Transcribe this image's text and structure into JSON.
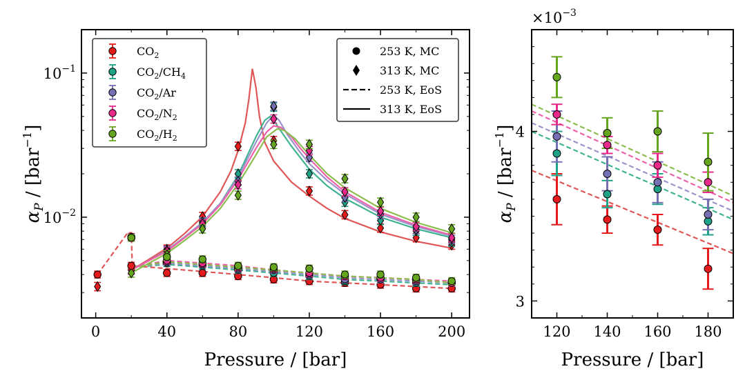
{
  "colors": {
    "CO2": "#e41a1c",
    "CO2/CH4": "#1fa187",
    "CO2/Ar": "#7570b3",
    "CO2/N2": "#e7298a",
    "CO2/H2": "#66a61e",
    "CO2_line": "#e05555",
    "CO2/CH4_line": "#3fb292",
    "CO2/Ar_line": "#9a93cc",
    "CO2/N2_line": "#ef60a8",
    "CO2/H2_line": "#8bbd4e"
  },
  "chart_data": [
    {
      "type": "scatter",
      "scale_y": "log",
      "xlabel_main": "Pressure / [bar]",
      "ylabel_prefix": "α",
      "ylabel_sub": "P",
      "ylabel_suffix": " / [bar",
      "ylabel_sup": "−1",
      "ylabel_close": "]",
      "xlim": [
        -8,
        210
      ],
      "ylim": [
        0.002,
        0.2
      ],
      "xticks": [
        0,
        40,
        80,
        120,
        160,
        200
      ],
      "xtick_labels": [
        "0",
        "40",
        "80",
        "120",
        "160",
        "200"
      ],
      "ytick_labels": [
        {
          "base": "10",
          "exp": "−1",
          "value": 0.1
        },
        {
          "base": "10",
          "exp": "−2",
          "value": 0.01
        }
      ],
      "legend_left": [
        {
          "base": "CO",
          "parts": [
            [
              "2",
              "sub"
            ]
          ],
          "key": "CO2"
        },
        {
          "base": "CO",
          "parts": [
            [
              "2",
              "sub"
            ],
            [
              "/CH",
              ""
            ],
            [
              "4",
              "sub"
            ]
          ],
          "key": "CO2/CH4"
        },
        {
          "base": "CO",
          "parts": [
            [
              "2",
              "sub"
            ],
            [
              "/Ar",
              ""
            ]
          ],
          "key": "CO2/Ar"
        },
        {
          "base": "CO",
          "parts": [
            [
              "2",
              "sub"
            ],
            [
              "/N",
              ""
            ],
            [
              "2",
              "sub"
            ]
          ],
          "key": "CO2/N2"
        },
        {
          "base": "CO",
          "parts": [
            [
              "2",
              "sub"
            ],
            [
              "/H",
              ""
            ],
            [
              "2",
              "sub"
            ]
          ],
          "key": "CO2/H2"
        }
      ],
      "legend_right": [
        {
          "label": "253 K, MC",
          "marker": "circle"
        },
        {
          "label": "313 K, MC",
          "marker": "diamond"
        },
        {
          "label": "253 K, EoS",
          "marker": "dashed"
        },
        {
          "label": "313 K, EoS",
          "marker": "solid"
        }
      ],
      "series_253_mc": [
        {
          "name": "CO2",
          "x": [
            1,
            20,
            40,
            60,
            80,
            100,
            120,
            140,
            160,
            180,
            200
          ],
          "y": [
            0.004,
            0.0046,
            0.0041,
            0.0041,
            0.0039,
            0.0037,
            0.0036,
            0.0035,
            0.0034,
            0.0032,
            0.0032
          ]
        },
        {
          "name": "CO2/CH4",
          "x": [
            20,
            40,
            60,
            80,
            100,
            120,
            140,
            160,
            180,
            200
          ],
          "y": [
            0.0072,
            0.0048,
            0.0046,
            0.0043,
            0.0041,
            0.0039,
            0.0036,
            0.0037,
            0.0035,
            0.0035
          ]
        },
        {
          "name": "CO2/Ar",
          "x": [
            20,
            40,
            60,
            80,
            100,
            120,
            140,
            160,
            180,
            200
          ],
          "y": [
            0.0072,
            0.0049,
            0.0047,
            0.0044,
            0.0043,
            0.004,
            0.0037,
            0.0037,
            0.0036,
            0.0035
          ]
        },
        {
          "name": "CO2/N2",
          "x": [
            20,
            40,
            60,
            80,
            100,
            120,
            140,
            160,
            180,
            200
          ],
          "y": [
            0.0073,
            0.005,
            0.0048,
            0.0045,
            0.0044,
            0.0041,
            0.0039,
            0.0038,
            0.0037,
            0.0035
          ]
        },
        {
          "name": "CO2/H2",
          "x": [
            20,
            40,
            60,
            80,
            100,
            120,
            140,
            160,
            180,
            200
          ],
          "y": [
            0.0072,
            0.0053,
            0.0051,
            0.0046,
            0.0045,
            0.0044,
            0.004,
            0.004,
            0.0038,
            0.0036
          ]
        }
      ],
      "series_313_mc": [
        {
          "name": "CO2",
          "x": [
            1,
            20,
            40,
            60,
            80,
            100,
            120,
            140,
            160,
            180,
            200
          ],
          "y": [
            0.0033,
            0.0043,
            0.006,
            0.0101,
            0.031,
            0.034,
            0.0152,
            0.0104,
            0.0084,
            0.0072,
            0.0064
          ]
        },
        {
          "name": "CO2/CH4",
          "x": [
            20,
            40,
            60,
            80,
            100,
            120,
            140,
            160,
            180,
            200
          ],
          "y": [
            0.0043,
            0.0058,
            0.0092,
            0.02,
            0.058,
            0.02,
            0.0127,
            0.0095,
            0.008,
            0.0067
          ]
        },
        {
          "name": "CO2/Ar",
          "x": [
            20,
            40,
            60,
            80,
            100,
            120,
            140,
            160,
            180,
            200
          ],
          "y": [
            0.0043,
            0.0059,
            0.0093,
            0.0178,
            0.059,
            0.026,
            0.0137,
            0.0105,
            0.0082,
            0.007
          ]
        },
        {
          "name": "CO2/N2",
          "x": [
            20,
            40,
            60,
            80,
            100,
            120,
            140,
            160,
            180,
            200
          ],
          "y": [
            0.0043,
            0.0058,
            0.009,
            0.0168,
            0.048,
            0.029,
            0.015,
            0.011,
            0.0086,
            0.0072
          ]
        },
        {
          "name": "CO2/H2",
          "x": [
            20,
            40,
            60,
            80,
            100,
            120,
            140,
            160,
            180,
            200
          ],
          "y": [
            0.0041,
            0.0055,
            0.0083,
            0.0142,
            0.032,
            0.032,
            0.0185,
            0.0127,
            0.01,
            0.0083
          ]
        }
      ],
      "eos_313": [
        {
          "name": "CO2",
          "x": [
            20,
            30,
            40,
            50,
            60,
            70,
            76,
            80,
            84,
            86,
            88,
            90,
            92,
            95,
            100,
            110,
            120,
            130,
            140,
            160,
            180,
            200
          ],
          "y": [
            0.0043,
            0.0051,
            0.0061,
            0.0077,
            0.0101,
            0.015,
            0.021,
            0.029,
            0.045,
            0.065,
            0.107,
            0.08,
            0.05,
            0.033,
            0.0245,
            0.0175,
            0.014,
            0.0115,
            0.0098,
            0.0079,
            0.0068,
            0.0061
          ]
        },
        {
          "name": "CO2/CH4",
          "x": [
            20,
            30,
            40,
            50,
            60,
            70,
            80,
            90,
            95,
            98,
            100,
            105,
            110,
            120,
            130,
            140,
            160,
            180,
            200
          ],
          "y": [
            0.0043,
            0.005,
            0.0059,
            0.0073,
            0.0092,
            0.0125,
            0.0195,
            0.036,
            0.047,
            0.05,
            0.047,
            0.038,
            0.031,
            0.0215,
            0.0165,
            0.0135,
            0.01,
            0.0083,
            0.0072
          ]
        },
        {
          "name": "CO2/Ar",
          "x": [
            20,
            30,
            40,
            50,
            60,
            70,
            80,
            90,
            96,
            100,
            103,
            108,
            115,
            120,
            130,
            140,
            160,
            180,
            200
          ],
          "y": [
            0.0043,
            0.005,
            0.0059,
            0.0073,
            0.0092,
            0.0125,
            0.019,
            0.033,
            0.045,
            0.051,
            0.047,
            0.037,
            0.028,
            0.0235,
            0.018,
            0.0145,
            0.0105,
            0.0086,
            0.0074
          ]
        },
        {
          "name": "CO2/N2",
          "x": [
            20,
            30,
            40,
            50,
            60,
            70,
            80,
            90,
            96,
            100,
            104,
            110,
            115,
            120,
            130,
            140,
            160,
            180,
            200
          ],
          "y": [
            0.0043,
            0.005,
            0.0058,
            0.0072,
            0.009,
            0.0122,
            0.0183,
            0.03,
            0.039,
            0.043,
            0.042,
            0.036,
            0.03,
            0.0255,
            0.019,
            0.015,
            0.0108,
            0.0088,
            0.0075
          ]
        },
        {
          "name": "CO2/H2",
          "x": [
            20,
            30,
            40,
            50,
            60,
            70,
            80,
            90,
            96,
            102,
            106,
            112,
            120,
            130,
            140,
            160,
            180,
            200
          ],
          "y": [
            0.0041,
            0.0048,
            0.0056,
            0.0069,
            0.0086,
            0.0115,
            0.017,
            0.027,
            0.036,
            0.041,
            0.04,
            0.035,
            0.027,
            0.02,
            0.016,
            0.0115,
            0.0092,
            0.0078
          ]
        }
      ],
      "eos_253": [
        {
          "name": "CO2",
          "x": [
            1,
            18,
            20,
            20.5,
            40,
            60,
            80,
            100,
            120,
            140,
            160,
            180,
            200
          ],
          "y": [
            0.004,
            0.0078,
            0.0078,
            0.0046,
            0.0044,
            0.0042,
            0.004,
            0.0038,
            0.0036,
            0.0035,
            0.0034,
            0.0033,
            0.0032
          ]
        },
        {
          "name": "CO2/CH4",
          "x": [
            20.5,
            40,
            60,
            80,
            100,
            120,
            140,
            160,
            180,
            200
          ],
          "y": [
            0.0045,
            0.0047,
            0.0045,
            0.0043,
            0.0041,
            0.0039,
            0.0037,
            0.0036,
            0.0035,
            0.0034
          ]
        },
        {
          "name": "CO2/Ar",
          "x": [
            20.5,
            40,
            60,
            80,
            100,
            120,
            140,
            160,
            180,
            200
          ],
          "y": [
            0.0045,
            0.0048,
            0.0046,
            0.0044,
            0.0042,
            0.004,
            0.0038,
            0.0037,
            0.0036,
            0.0035
          ]
        },
        {
          "name": "CO2/N2",
          "x": [
            20.5,
            40,
            60,
            80,
            100,
            120,
            140,
            160,
            180,
            200
          ],
          "y": [
            0.0045,
            0.005,
            0.0048,
            0.0046,
            0.0043,
            0.0041,
            0.0039,
            0.0038,
            0.0037,
            0.0036
          ]
        },
        {
          "name": "CO2/H2",
          "x": [
            20.5,
            40,
            60,
            80,
            100,
            120,
            140,
            160,
            180,
            200
          ],
          "y": [
            0.0045,
            0.0049,
            0.0047,
            0.0045,
            0.0043,
            0.0041,
            0.0039,
            0.0038,
            0.0037,
            0.0035
          ]
        }
      ]
    },
    {
      "type": "scatter",
      "scale_y": "linear",
      "xlabel_main": "Pressure / [bar]",
      "ylabel_prefix": "α",
      "ylabel_sub": "P",
      "ylabel_suffix": " / [bar",
      "ylabel_sup": "−1",
      "ylabel_close": "]",
      "multiplier_base": "×10",
      "multiplier_exp": "−3",
      "xlim": [
        110,
        190
      ],
      "ylim": [
        0.0029,
        0.0046
      ],
      "xticks": [
        120,
        140,
        160,
        180
      ],
      "xtick_labels": [
        "120",
        "140",
        "160",
        "180"
      ],
      "yticks": [
        0.003,
        0.004
      ],
      "ytick_labels": [
        "3",
        "4"
      ],
      "points": [
        {
          "name": "CO2",
          "x": [
            120,
            140,
            160,
            180
          ],
          "y": [
            0.0036,
            0.00348,
            0.00342,
            0.00319
          ],
          "err": [
            0.00015,
            8e-05,
            9e-05,
            0.00012
          ]
        },
        {
          "name": "CO2/CH4",
          "x": [
            120,
            140,
            160,
            180
          ],
          "y": [
            0.00387,
            0.00363,
            0.00366,
            0.00347
          ],
          "err": [
            0.00013,
            8e-05,
            9e-05,
            8e-05
          ]
        },
        {
          "name": "CO2/Ar",
          "x": [
            120,
            140,
            160,
            180
          ],
          "y": [
            0.00397,
            0.00375,
            0.0037,
            0.00351
          ],
          "err": [
            0.00015,
            0.0001,
            0.00012,
            9e-05
          ]
        },
        {
          "name": "CO2/N2",
          "x": [
            120,
            140,
            160,
            180
          ],
          "y": [
            0.0041,
            0.00392,
            0.0038,
            0.0037
          ],
          "err": [
            6e-05,
            5e-05,
            7e-05,
            6e-05
          ]
        },
        {
          "name": "CO2/H2",
          "x": [
            120,
            140,
            160,
            180
          ],
          "y": [
            0.00432,
            0.00399,
            0.004,
            0.00382
          ],
          "err": [
            0.00012,
            9e-05,
            0.00012,
            0.00017
          ]
        }
      ],
      "eos_lines": [
        {
          "name": "CO2",
          "x": [
            110,
            190
          ],
          "y": [
            0.00377,
            0.00328
          ]
        },
        {
          "name": "CO2/CH4",
          "x": [
            110,
            190
          ],
          "y": [
            0.004,
            0.00348
          ]
        },
        {
          "name": "CO2/Ar",
          "x": [
            110,
            190
          ],
          "y": [
            0.00405,
            0.00353
          ]
        },
        {
          "name": "CO2/N2",
          "x": [
            110,
            190
          ],
          "y": [
            0.00412,
            0.00358
          ]
        },
        {
          "name": "CO2/H2",
          "x": [
            110,
            190
          ],
          "y": [
            0.00416,
            0.00362
          ]
        }
      ]
    }
  ]
}
